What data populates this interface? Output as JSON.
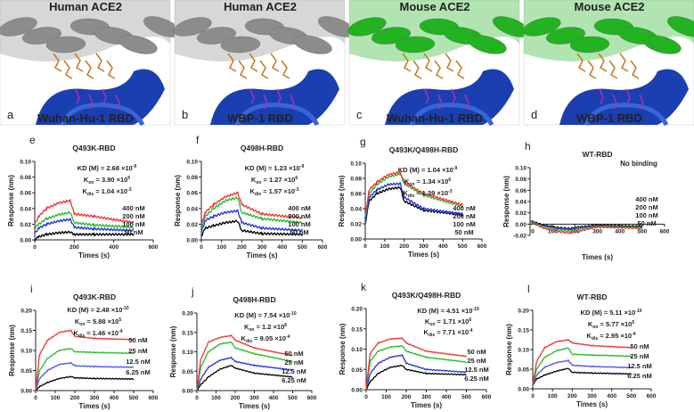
{
  "structure_panels": [
    {
      "letter": "a",
      "top_label": "Human ACE2",
      "bottom_label": "Wuhan-Hu-1 RBD",
      "ace2_color": "#8c8c8c"
    },
    {
      "letter": "b",
      "top_label": "Human ACE2",
      "bottom_label": "WBP-1 RBD",
      "ace2_color": "#8c8c8c"
    },
    {
      "letter": "c",
      "top_label": "Mouse ACE2",
      "bottom_label": "Wuhan-Hu-1 RBD",
      "ace2_color": "#22b322"
    },
    {
      "letter": "d",
      "top_label": "Mouse ACE2",
      "bottom_label": "WBP-1 RBD",
      "ace2_color": "#22b322"
    }
  ],
  "rbd_color": "#1a3fb0",
  "labels": {
    "kd": "KD (M) = ",
    "k": "K",
    "on": "on",
    "dis": "dis",
    "times": "×10",
    "xlabel": "Times (s)",
    "ylabel": "Response (nm)"
  },
  "chart_data": [
    {
      "letter": "e",
      "type": "line",
      "title": "Q493K-RBD",
      "xlabel": "Times (s)",
      "ylabel": "Response (nm)",
      "xlim": [
        0,
        600
      ],
      "ylim": [
        0,
        0.1
      ],
      "xticks": [
        0,
        200,
        400,
        600
      ],
      "yticks": [
        0,
        0.02,
        0.04,
        0.06,
        0.08,
        0.1
      ],
      "kinetics": {
        "kd": [
          "2.68",
          "-9"
        ],
        "kon": [
          "3.90",
          "5"
        ],
        "kdis": [
          "1.04",
          "-3"
        ]
      },
      "x": [
        0,
        20,
        60,
        120,
        180,
        200,
        300,
        500
      ],
      "series": [
        {
          "name": "400 nM",
          "color": "#ee3333",
          "values": [
            0.02,
            0.03,
            0.04,
            0.047,
            0.05,
            0.033,
            0.03,
            0.022
          ]
        },
        {
          "name": "200 nM",
          "color": "#22bb22",
          "values": [
            0.015,
            0.02,
            0.027,
            0.032,
            0.035,
            0.022,
            0.019,
            0.016
          ]
        },
        {
          "name": "100 nM",
          "color": "#1f2fdd",
          "values": [
            0.008,
            0.015,
            0.02,
            0.024,
            0.026,
            0.016,
            0.014,
            0.012
          ]
        },
        {
          "name": "50 nM",
          "color": "#000000",
          "values": [
            0,
            0.004,
            0.007,
            0.009,
            0.01,
            0.007,
            0.007,
            0.007
          ]
        }
      ]
    },
    {
      "letter": "f",
      "type": "line",
      "title": "Q498H-RBD",
      "xlabel": "Times (s)",
      "ylabel": "Response (nm)",
      "xlim": [
        0,
        600
      ],
      "ylim": [
        0,
        0.1
      ],
      "xticks": [
        0,
        100,
        200,
        300,
        400,
        500,
        600
      ],
      "yticks": [
        0,
        0.02,
        0.04,
        0.06,
        0.08,
        0.1
      ],
      "kinetics": {
        "kd": [
          "1.23",
          "-9"
        ],
        "kon": [
          "1.27",
          "6"
        ],
        "kdis": [
          "1.57",
          "-3"
        ]
      },
      "x": [
        0,
        20,
        60,
        120,
        180,
        200,
        300,
        500
      ],
      "series": [
        {
          "name": "400 nM",
          "color": "#ee3333",
          "values": [
            0.02,
            0.035,
            0.045,
            0.055,
            0.06,
            0.045,
            0.033,
            0.028
          ]
        },
        {
          "name": "200 nM",
          "color": "#22bb22",
          "values": [
            0.015,
            0.03,
            0.04,
            0.05,
            0.054,
            0.035,
            0.027,
            0.022
          ]
        },
        {
          "name": "100 nM",
          "color": "#1f2fdd",
          "values": [
            0.01,
            0.025,
            0.03,
            0.035,
            0.037,
            0.022,
            0.015,
            0.012
          ]
        },
        {
          "name": "50 nM",
          "color": "#000000",
          "values": [
            0.005,
            0.015,
            0.018,
            0.022,
            0.024,
            0.012,
            0.008,
            0.007
          ]
        }
      ]
    },
    {
      "letter": "g",
      "type": "line",
      "title": "Q493K/Q498H-RBD",
      "xlabel": "Times (s)",
      "ylabel": "Response (nm)",
      "xlim": [
        0,
        600
      ],
      "ylim": [
        0,
        0.1
      ],
      "xticks": [
        0,
        100,
        200,
        300,
        400,
        500,
        600
      ],
      "yticks": [
        0,
        0.02,
        0.04,
        0.06,
        0.08,
        0.1
      ],
      "kinetics": {
        "kd": [
          "1.04",
          "-9"
        ],
        "kon": [
          "1.34",
          "6"
        ],
        "kdis": [
          "1.39",
          "-3"
        ]
      },
      "x": [
        0,
        20,
        60,
        120,
        180,
        200,
        300,
        500
      ],
      "series": [
        {
          "name": "400 nM",
          "color": "#ee3333",
          "values": [
            0.03,
            0.065,
            0.075,
            0.085,
            0.088,
            0.075,
            0.06,
            0.045
          ]
        },
        {
          "name": "200 nM",
          "color": "#22bb22",
          "values": [
            0.03,
            0.06,
            0.072,
            0.082,
            0.086,
            0.073,
            0.058,
            0.043
          ]
        },
        {
          "name": "100 nM",
          "color": "#1f2fdd",
          "values": [
            0.02,
            0.055,
            0.065,
            0.072,
            0.073,
            0.055,
            0.04,
            0.033
          ]
        },
        {
          "name": "50 nM",
          "color": "#000000",
          "values": [
            0.02,
            0.05,
            0.06,
            0.066,
            0.068,
            0.05,
            0.038,
            0.032
          ]
        }
      ]
    },
    {
      "letter": "h",
      "type": "line",
      "title": "WT-RBD",
      "annotation": "No binding",
      "xlabel": "Times (s)",
      "ylabel": "Response (nm)",
      "xlim": [
        0,
        600
      ],
      "ylim": [
        -0.02,
        0.1
      ],
      "xticks": [
        0,
        100,
        200,
        300,
        400,
        500,
        600
      ],
      "yticks": [
        -0.02,
        0,
        0.02,
        0.04,
        0.06,
        0.08,
        0.1
      ],
      "x": [
        0,
        60,
        120,
        180,
        200,
        300,
        500
      ],
      "series": [
        {
          "name": "400 nM",
          "color": "#ee3333",
          "values": [
            0.004,
            -0.007,
            -0.013,
            -0.016,
            -0.014,
            -0.005,
            -0.007
          ]
        },
        {
          "name": "200 nM",
          "color": "#22bb22",
          "values": [
            0.005,
            -0.005,
            -0.011,
            -0.013,
            -0.011,
            -0.004,
            -0.006
          ]
        },
        {
          "name": "100 nM",
          "color": "#1f2fdd",
          "values": [
            0.005,
            -0.003,
            -0.008,
            -0.01,
            -0.008,
            -0.003,
            -0.007
          ]
        },
        {
          "name": "50 nM",
          "color": "#000000",
          "values": [
            0.006,
            -0.002,
            -0.006,
            -0.008,
            -0.006,
            -0.002,
            -0.004
          ]
        }
      ]
    },
    {
      "letter": "i",
      "type": "line",
      "title": "Q493K-RBD",
      "xlabel": "Times (s)",
      "ylabel": "Response (nm)",
      "xlim": [
        0,
        600
      ],
      "ylim": [
        0,
        0.2
      ],
      "xticks": [
        0,
        100,
        200,
        300,
        400,
        500,
        600
      ],
      "yticks": [
        0,
        0.05,
        0.1,
        0.15,
        0.2
      ],
      "kinetics": {
        "kd": [
          "2.48",
          "-10"
        ],
        "kon": [
          "5.88",
          "5"
        ],
        "kdis": [
          "1.46",
          "-4"
        ]
      },
      "x": [
        0,
        20,
        60,
        120,
        180,
        200,
        300,
        500
      ],
      "series": [
        {
          "name": "50 nM",
          "color": "#ee3333",
          "values": [
            0,
            0.09,
            0.125,
            0.145,
            0.15,
            0.135,
            0.13,
            0.127
          ]
        },
        {
          "name": "25 nM",
          "color": "#22bb22",
          "values": [
            0,
            0.05,
            0.08,
            0.1,
            0.105,
            0.097,
            0.095,
            0.093
          ]
        },
        {
          "name": "12.5 nM",
          "color": "#5050ee",
          "values": [
            0,
            0.03,
            0.05,
            0.065,
            0.069,
            0.062,
            0.06,
            0.058
          ]
        },
        {
          "name": "6.25 nM",
          "color": "#000000",
          "values": [
            0,
            0.01,
            0.02,
            0.03,
            0.035,
            0.032,
            0.03,
            0.029
          ]
        }
      ]
    },
    {
      "letter": "j",
      "type": "line",
      "title": "Q498H-RBD",
      "xlabel": "Times (s)",
      "ylabel": "Response (nm)",
      "xlim": [
        0,
        600
      ],
      "ylim": [
        0,
        0.2
      ],
      "xticks": [
        0,
        100,
        200,
        300,
        400,
        500,
        600
      ],
      "yticks": [
        0,
        0.05,
        0.1,
        0.15,
        0.2
      ],
      "kinetics": {
        "kd": [
          "7.54",
          "-10"
        ],
        "kon": [
          "1.2",
          "6"
        ],
        "kdis": [
          "9.05",
          "-4"
        ]
      },
      "x": [
        0,
        20,
        60,
        120,
        180,
        200,
        300,
        500
      ],
      "series": [
        {
          "name": "50 nM",
          "color": "#ee3333",
          "values": [
            0,
            0.08,
            0.125,
            0.137,
            0.142,
            0.13,
            0.11,
            0.09
          ]
        },
        {
          "name": "25 nM",
          "color": "#22bb22",
          "values": [
            0,
            0.06,
            0.1,
            0.12,
            0.125,
            0.11,
            0.095,
            0.075
          ]
        },
        {
          "name": "12.5 nM",
          "color": "#1f2fdd",
          "values": [
            0,
            0.03,
            0.06,
            0.078,
            0.085,
            0.075,
            0.065,
            0.053
          ]
        },
        {
          "name": "6.25 nM",
          "color": "#000000",
          "values": [
            0,
            0.015,
            0.035,
            0.055,
            0.065,
            0.058,
            0.045,
            0.035
          ]
        }
      ]
    },
    {
      "letter": "k",
      "type": "line",
      "title": "Q493K/Q498H-RBD",
      "xlabel": "Times (s)",
      "ylabel": "Response (nm)",
      "xlim": [
        0,
        600
      ],
      "ylim": [
        0,
        0.2
      ],
      "xticks": [
        0,
        100,
        200,
        300,
        400,
        500,
        600
      ],
      "yticks": [
        0,
        0.05,
        0.1,
        0.15,
        0.2
      ],
      "kinetics": {
        "kd": [
          "4.51",
          "-10"
        ],
        "kon": [
          "1.71",
          "6"
        ],
        "kdis": [
          "7.71",
          "-4"
        ]
      },
      "x": [
        0,
        20,
        60,
        120,
        180,
        200,
        300,
        500
      ],
      "series": [
        {
          "name": "50 nM",
          "color": "#ee3333",
          "values": [
            0,
            0.09,
            0.115,
            0.125,
            0.127,
            0.115,
            0.095,
            0.082
          ]
        },
        {
          "name": "25 nM",
          "color": "#22bb22",
          "values": [
            0,
            0.07,
            0.095,
            0.105,
            0.108,
            0.095,
            0.08,
            0.068
          ]
        },
        {
          "name": "12.5 nM",
          "color": "#1f2fdd",
          "values": [
            0,
            0.04,
            0.065,
            0.08,
            0.085,
            0.065,
            0.05,
            0.043
          ]
        },
        {
          "name": "6.25 nM",
          "color": "#000000",
          "values": [
            0,
            0.02,
            0.04,
            0.055,
            0.06,
            0.05,
            0.04,
            0.037
          ]
        }
      ]
    },
    {
      "letter": "l",
      "type": "line",
      "title": "WT-RBD",
      "xlabel": "Times (s)",
      "ylabel": "Response (nm)",
      "xlim": [
        0,
        600
      ],
      "ylim": [
        0,
        0.2
      ],
      "xticks": [
        0,
        100,
        200,
        300,
        400,
        500,
        600
      ],
      "yticks": [
        0,
        0.05,
        0.1,
        0.15,
        0.2
      ],
      "kinetics": {
        "kd": [
          "5.11",
          "-10"
        ],
        "kon": [
          "5.77",
          "5"
        ],
        "kdis": [
          "2.95",
          "-4"
        ]
      },
      "x": [
        0,
        20,
        60,
        120,
        180,
        200,
        300,
        500
      ],
      "series": [
        {
          "name": "50 nM",
          "color": "#ee3333",
          "values": [
            0.01,
            0.07,
            0.105,
            0.12,
            0.125,
            0.117,
            0.11,
            0.105
          ]
        },
        {
          "name": "25 nM",
          "color": "#22bb22",
          "values": [
            0.01,
            0.05,
            0.08,
            0.097,
            0.104,
            0.088,
            0.086,
            0.083
          ]
        },
        {
          "name": "12.5 nM",
          "color": "#5050ee",
          "values": [
            0.01,
            0.035,
            0.055,
            0.067,
            0.072,
            0.06,
            0.057,
            0.054
          ]
        },
        {
          "name": "6.25 nM",
          "color": "#000000",
          "values": [
            0.01,
            0.025,
            0.035,
            0.045,
            0.052,
            0.042,
            0.04,
            0.038
          ]
        }
      ]
    }
  ]
}
